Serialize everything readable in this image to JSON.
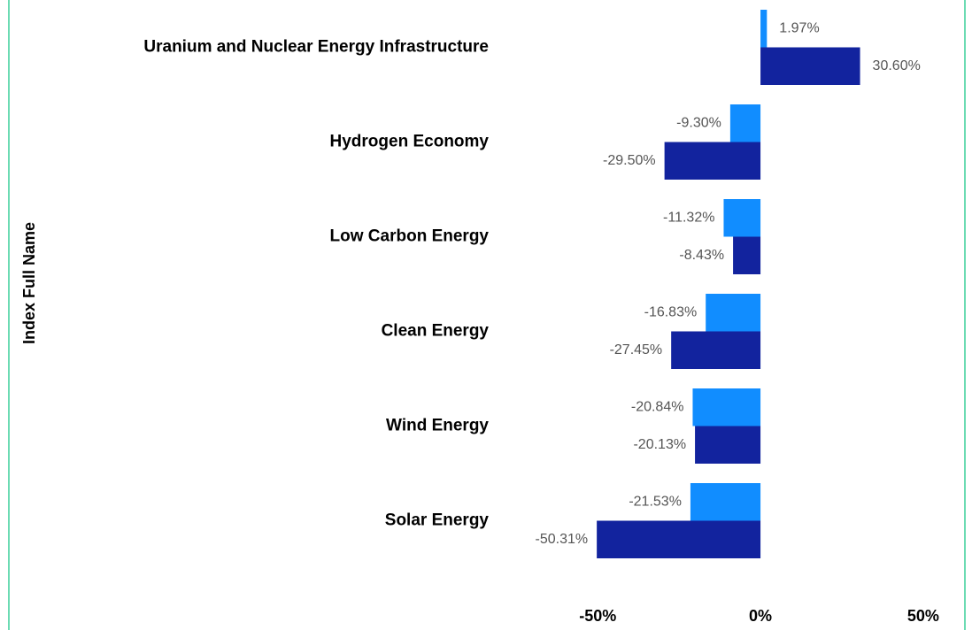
{
  "chart_data": {
    "type": "hbar",
    "y_axis_label": "Index Full Name",
    "categories": [
      "Uranium and Nuclear Energy Infrastructure",
      "Hydrogen Economy",
      "Low Carbon Energy",
      "Clean Energy",
      "Wind Energy",
      "Solar Energy"
    ],
    "series": [
      {
        "color": "#118dff",
        "values": [
          1.97,
          -9.3,
          -11.32,
          -16.83,
          -20.84,
          -21.53
        ],
        "value_labels": [
          "1.97%",
          "-9.30%",
          "-11.32%",
          "-16.83%",
          "-20.84%",
          "-21.53%"
        ]
      },
      {
        "color": "#12239e",
        "values": [
          30.6,
          -29.5,
          -8.43,
          -27.45,
          -20.13,
          -50.31
        ],
        "value_labels": [
          "30.60%",
          "-29.50%",
          "-8.43%",
          "-27.45%",
          "-20.13%",
          "-50.31%"
        ]
      }
    ],
    "xlim": [
      -80,
      65
    ],
    "xticks": [
      {
        "value": -50,
        "label": "-50%"
      },
      {
        "value": 0,
        "label": "0%"
      },
      {
        "value": 50,
        "label": "50%"
      }
    ]
  }
}
